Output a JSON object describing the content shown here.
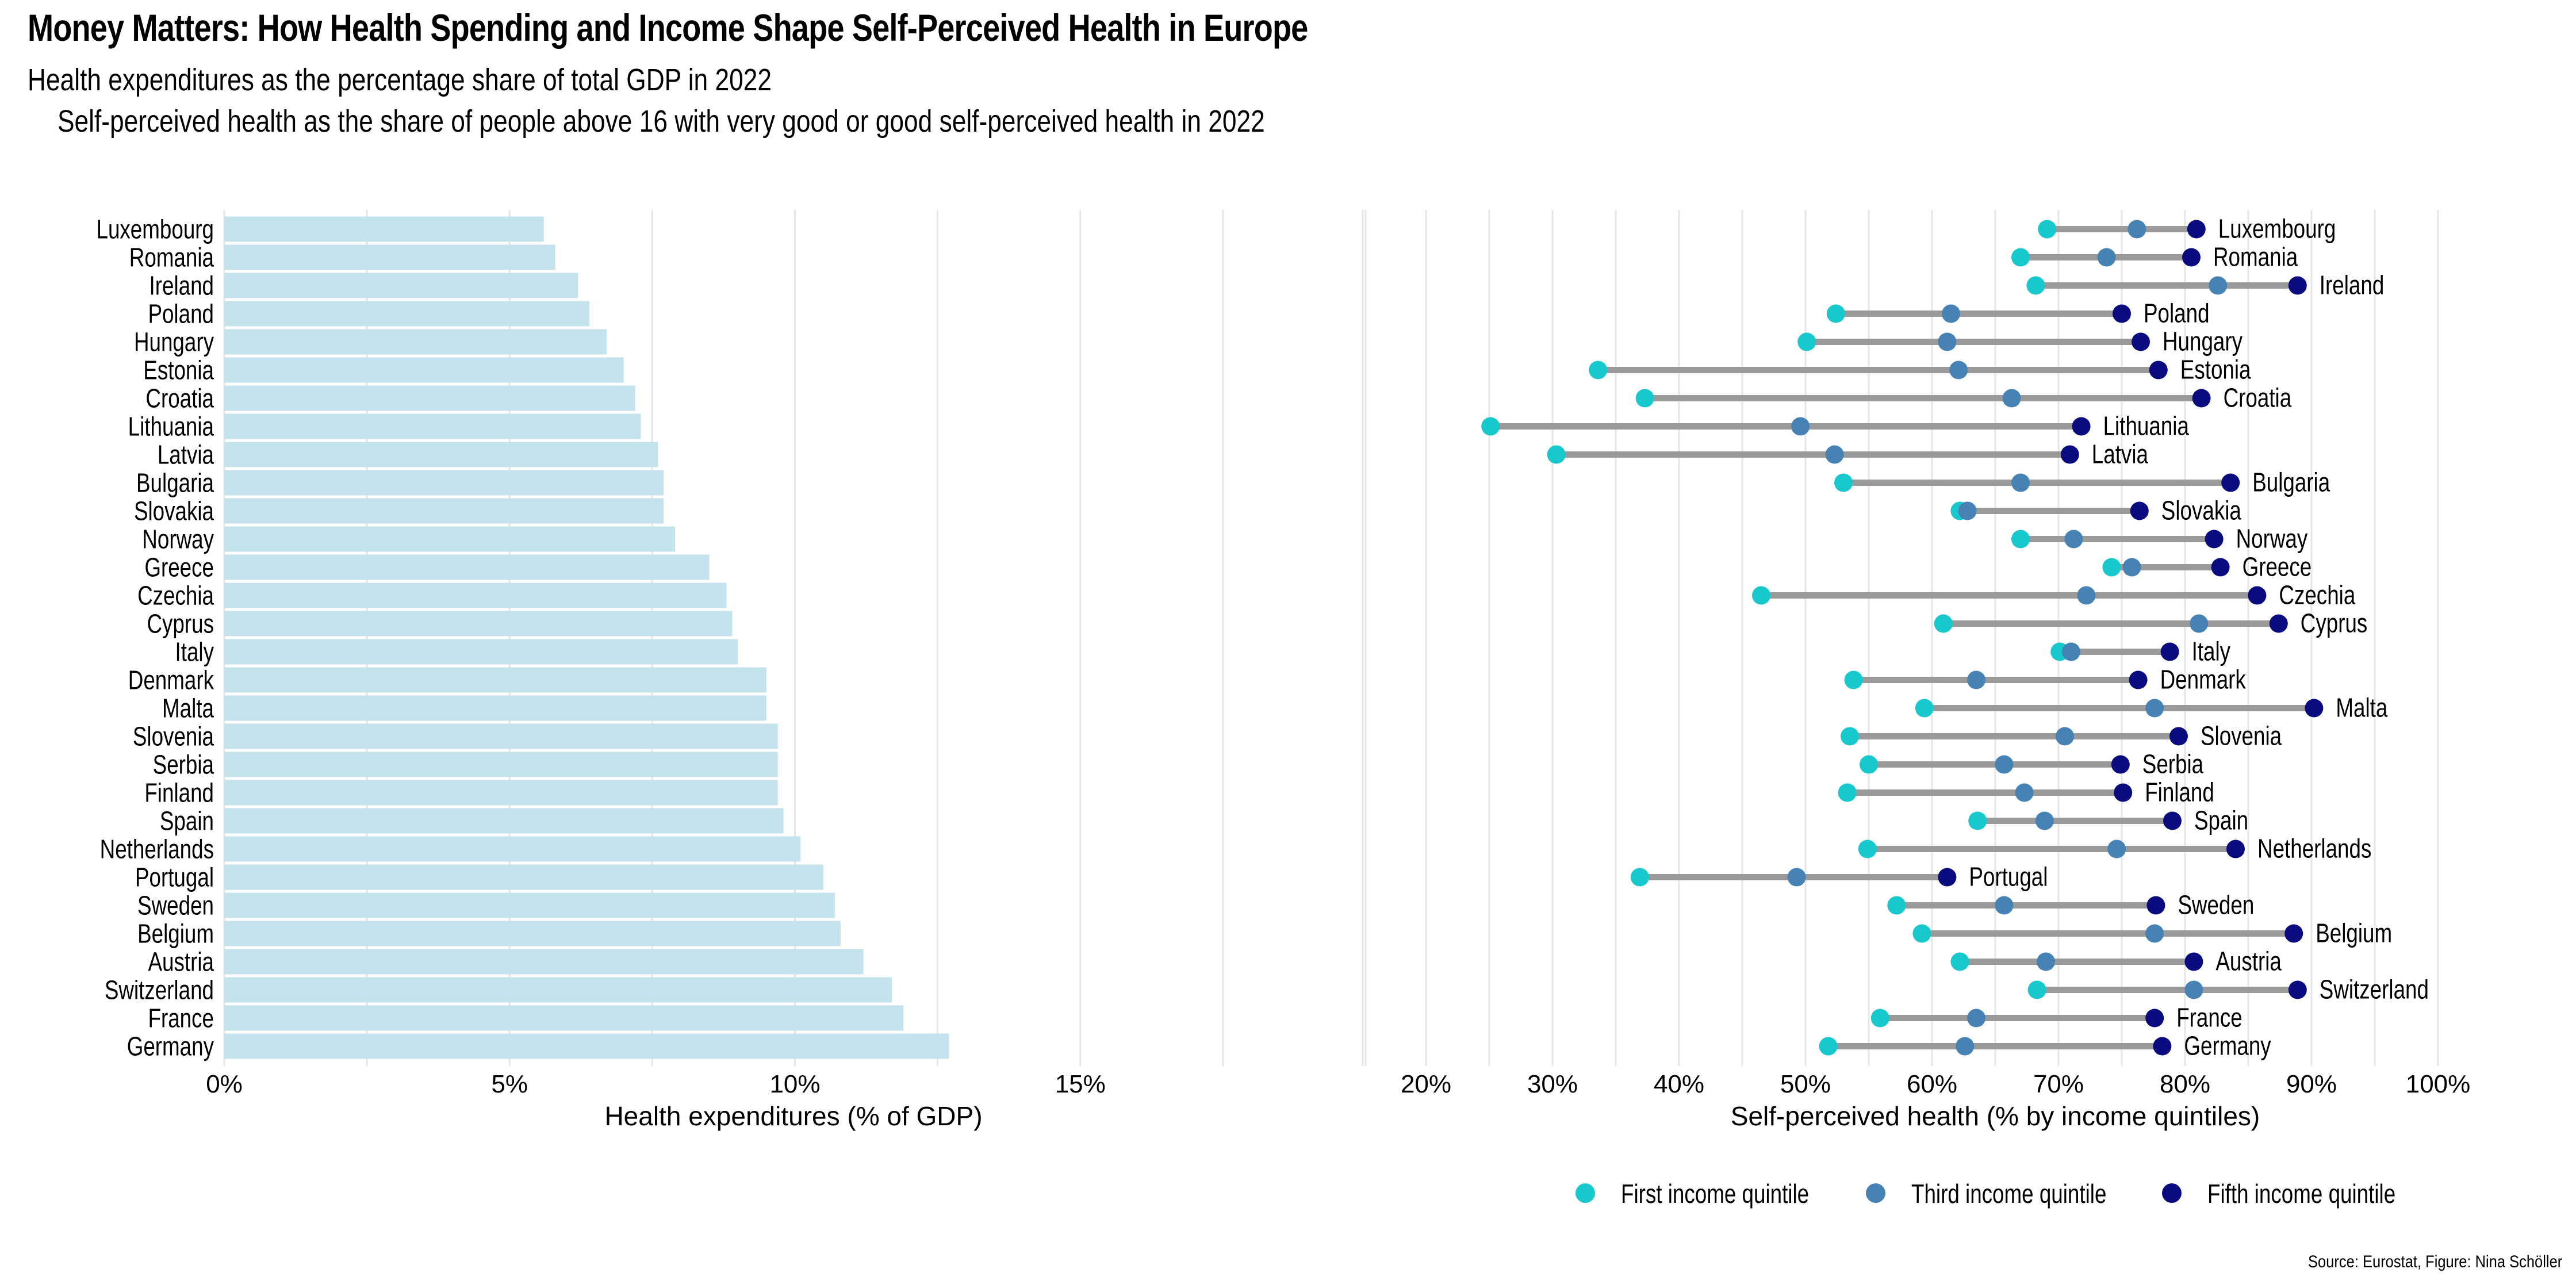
{
  "title": "Money Matters: How Health Spending and Income Shape Self-Perceived Health in Europe",
  "subtitle": "Health expenditures as the percentage share of total GDP in 2022",
  "subtitle2": "Self-perceived health as the share of people above 16 with very good or good self-perceived health in 2022",
  "caption": "Source: Eurostat, Figure: Nina Schöller",
  "colors": {
    "bar": "#c4e3ec",
    "grid": "#e6e6e6",
    "connector": "#9a9a9a",
    "first_quintile": "#17c9cc",
    "third_quintile": "#4682b4",
    "fifth_quintile": "#0b0b80"
  },
  "chart_data": [
    {
      "type": "bar",
      "orientation": "horizontal",
      "categories": [
        "Luxembourg",
        "Romania",
        "Ireland",
        "Poland",
        "Hungary",
        "Estonia",
        "Croatia",
        "Lithuania",
        "Latvia",
        "Bulgaria",
        "Slovakia",
        "Norway",
        "Greece",
        "Czechia",
        "Cyprus",
        "Italy",
        "Denmark",
        "Malta",
        "Slovenia",
        "Serbia",
        "Finland",
        "Spain",
        "Netherlands",
        "Portugal",
        "Sweden",
        "Belgium",
        "Austria",
        "Switzerland",
        "France",
        "Germany"
      ],
      "values": [
        5.6,
        5.8,
        6.2,
        6.4,
        6.7,
        7.0,
        7.2,
        7.3,
        7.6,
        7.7,
        7.7,
        7.9,
        8.5,
        8.8,
        8.9,
        9.0,
        9.5,
        9.5,
        9.7,
        9.7,
        9.7,
        9.8,
        10.1,
        10.5,
        10.7,
        10.8,
        11.2,
        11.7,
        11.9,
        12.7
      ],
      "xlabel": "Health expenditures (% of GDP)",
      "xlim": [
        0,
        20
      ],
      "xticks": [
        "0%",
        "5%",
        "10%",
        "15%"
      ],
      "grid": true
    },
    {
      "type": "dumbbell",
      "categories": [
        "Luxembourg",
        "Romania",
        "Ireland",
        "Poland",
        "Hungary",
        "Estonia",
        "Croatia",
        "Lithuania",
        "Latvia",
        "Bulgaria",
        "Slovakia",
        "Norway",
        "Greece",
        "Czechia",
        "Cyprus",
        "Italy",
        "Denmark",
        "Malta",
        "Slovenia",
        "Serbia",
        "Finland",
        "Spain",
        "Netherlands",
        "Portugal",
        "Sweden",
        "Belgium",
        "Austria",
        "Switzerland",
        "France",
        "Germany"
      ],
      "series": [
        {
          "name": "First income quintile",
          "values": [
            69.1,
            67.0,
            68.2,
            52.4,
            50.1,
            33.6,
            37.3,
            25.1,
            30.3,
            53.0,
            62.2,
            67.0,
            74.2,
            46.5,
            60.9,
            70.1,
            53.8,
            59.4,
            53.5,
            55.0,
            53.3,
            63.6,
            54.9,
            36.9,
            57.2,
            59.2,
            62.2,
            68.3,
            55.9,
            51.8
          ]
        },
        {
          "name": "Third income quintile",
          "values": [
            76.2,
            73.8,
            82.6,
            61.5,
            61.2,
            62.1,
            66.3,
            49.6,
            52.3,
            67.0,
            62.8,
            71.2,
            75.8,
            72.2,
            81.1,
            71.0,
            63.5,
            77.6,
            70.5,
            65.7,
            67.3,
            68.9,
            74.6,
            49.3,
            65.7,
            77.6,
            69.0,
            80.7,
            63.5,
            62.6
          ]
        },
        {
          "name": "Fifth income quintile",
          "values": [
            80.9,
            80.5,
            88.9,
            75.0,
            76.5,
            77.9,
            81.3,
            71.8,
            70.9,
            83.6,
            76.4,
            82.3,
            82.8,
            85.7,
            87.4,
            78.8,
            76.3,
            90.2,
            79.5,
            74.9,
            75.1,
            79.0,
            84.0,
            61.2,
            77.7,
            88.6,
            80.7,
            88.9,
            77.6,
            78.2
          ]
        }
      ],
      "xlabel": "Self-perceived health (% by income quintiles)",
      "xlim": [
        10,
        100
      ],
      "xticks": [
        "20%",
        "30%",
        "40%",
        "50%",
        "60%",
        "70%",
        "80%",
        "90%",
        "100%"
      ],
      "grid": true,
      "legend_position": "bottom"
    }
  ]
}
